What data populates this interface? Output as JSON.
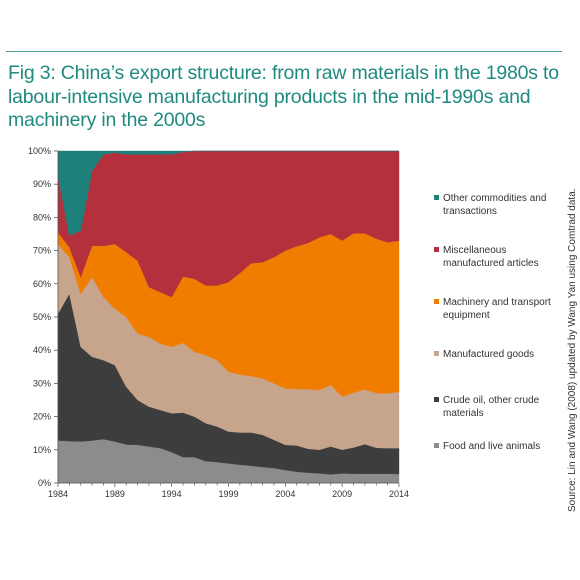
{
  "title": "Fig 3: China’s export structure: from raw materials in the 1980s to labour-intensive manufacturing products in the mid-1990s and machinery in the 2000s",
  "source": "Source: Lin and Wang (2008) updated by Wang Yan using Comtrad data.",
  "chart_data": {
    "type": "area",
    "stacked": true,
    "x": [
      1984,
      1985,
      1986,
      1987,
      1988,
      1989,
      1990,
      1991,
      1992,
      1993,
      1994,
      1995,
      1996,
      1997,
      1998,
      1999,
      2000,
      2001,
      2002,
      2003,
      2004,
      2005,
      2006,
      2007,
      2008,
      2009,
      2010,
      2011,
      2012,
      2013,
      2014
    ],
    "xlim": [
      1984,
      2014
    ],
    "ylim": [
      0,
      100
    ],
    "x_ticks": [
      1984,
      1989,
      1994,
      1999,
      2004,
      2009,
      2014
    ],
    "y_ticks": [
      "0%",
      "10%",
      "20%",
      "30%",
      "40%",
      "50%",
      "60%",
      "70%",
      "80%",
      "90%",
      "100%"
    ],
    "grid": false,
    "legend_position": "right",
    "series": [
      {
        "name": "Food and live animals",
        "color": "#8c8c8c",
        "values": [
          12.8,
          12.6,
          12.5,
          12.8,
          13.2,
          12.5,
          11.6,
          11.5,
          11,
          10.5,
          9.3,
          7.8,
          7.8,
          6.6,
          6.3,
          5.9,
          5.5,
          5.2,
          4.8,
          4.5,
          3.9,
          3.4,
          3.1,
          2.9,
          2.6,
          2.9,
          2.8,
          2.8,
          2.8,
          2.8,
          2.7
        ]
      },
      {
        "name": "Crude oil, other crude materials",
        "color": "#3d3d3d",
        "values": [
          38.2,
          44.4,
          28.5,
          25.2,
          23.8,
          23,
          17.4,
          13.5,
          12,
          11.5,
          11.7,
          13.4,
          12.2,
          11.4,
          10.7,
          9.6,
          9.7,
          10,
          9.7,
          8.5,
          7.6,
          7.9,
          7.2,
          7.1,
          8.4,
          7.1,
          7.9,
          8.9,
          7.8,
          7.7,
          7.8
        ]
      },
      {
        "name": "Manufactured goods",
        "color": "#c7a48c",
        "values": [
          21,
          11,
          16,
          24,
          19,
          17,
          21,
          20,
          21,
          20,
          20,
          21,
          19.5,
          20.5,
          20,
          18,
          17.5,
          17,
          17,
          17,
          17,
          17,
          18,
          18,
          18.5,
          16,
          16.5,
          16.5,
          16.5,
          16.5,
          17
        ]
      },
      {
        "name": "Machinery and transport equipment",
        "color": "#f07d00",
        "values": [
          3.5,
          3,
          5,
          9.5,
          15.4,
          19.5,
          19.5,
          22,
          15,
          15.5,
          15,
          20,
          22,
          21,
          22.5,
          27,
          30.5,
          34,
          35,
          38,
          41.5,
          43,
          44,
          46,
          45.5,
          47,
          48,
          47,
          46.5,
          45.5,
          45.5
        ]
      },
      {
        "name": "Miscellaneous manufactured articles",
        "color": "#b3303c",
        "values": [
          17,
          3.5,
          14,
          22.5,
          27.6,
          27.5,
          29.5,
          32,
          40,
          41.5,
          43,
          37.5,
          38.5,
          40.5,
          40.5,
          39.5,
          36.8,
          33.8,
          33.5,
          32,
          30,
          28.7,
          27.7,
          26,
          25,
          27,
          24.8,
          24.8,
          26.4,
          27.5,
          27
        ]
      },
      {
        "name": "Other commodities and transactions",
        "color": "#1d807a",
        "values": [
          7.5,
          25.5,
          24,
          6,
          1,
          0.5,
          1,
          1,
          1,
          1,
          1,
          0.3,
          0,
          0,
          0,
          0,
          0,
          0,
          0,
          0,
          0,
          0,
          0,
          0,
          0,
          0,
          0,
          0,
          0,
          0,
          0
        ]
      }
    ]
  }
}
